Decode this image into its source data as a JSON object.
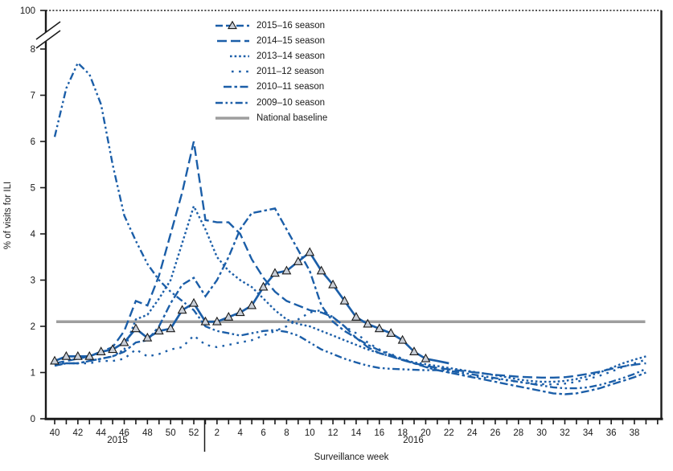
{
  "chart_data": {
    "type": "line",
    "title": "",
    "xlabel": "Surveillance week",
    "ylabel": "% of visits for ILI",
    "x_axis": {
      "weeks": [
        40,
        41,
        42,
        43,
        44,
        45,
        46,
        47,
        48,
        49,
        50,
        51,
        52,
        1,
        2,
        3,
        4,
        5,
        6,
        7,
        8,
        9,
        10,
        11,
        12,
        13,
        14,
        15,
        16,
        17,
        18,
        19,
        20,
        21,
        22,
        23,
        24,
        25,
        26,
        27,
        28,
        29,
        30,
        31,
        32,
        33,
        34,
        35,
        36,
        37,
        38,
        39
      ],
      "tick_label_every": 2,
      "year_labels": [
        "2015",
        "2016"
      ]
    },
    "y_axis": {
      "ticks": [
        0,
        1,
        2,
        3,
        4,
        5,
        6,
        7,
        8
      ],
      "break_label": "100",
      "has_axis_break": true
    },
    "baseline": {
      "name": "National baseline",
      "value": 2.1
    },
    "series": [
      {
        "name": "2015–16 season",
        "style": "solid-triangle",
        "marker": "triangle",
        "marker_last_index": 32,
        "values": [
          1.25,
          1.35,
          1.35,
          1.35,
          1.45,
          1.5,
          1.65,
          1.95,
          1.75,
          1.9,
          1.95,
          2.35,
          2.5,
          2.1,
          2.1,
          2.2,
          2.3,
          2.45,
          2.85,
          3.15,
          3.2,
          3.4,
          3.6,
          3.2,
          2.9,
          2.55,
          2.2,
          2.05,
          1.95,
          1.85,
          1.7,
          1.45,
          1.3,
          1.25,
          1.2,
          null,
          null,
          null,
          null,
          null,
          null,
          null,
          null,
          null,
          null,
          null,
          null,
          null,
          null,
          null,
          null,
          null
        ]
      },
      {
        "name": "2014–15 season",
        "style": "long-dash",
        "values": [
          1.2,
          1.25,
          1.3,
          1.35,
          1.45,
          1.55,
          1.9,
          2.55,
          2.45,
          3.1,
          4.0,
          4.9,
          6.0,
          4.3,
          4.25,
          4.25,
          4.0,
          3.45,
          3.05,
          2.75,
          2.55,
          2.45,
          2.35,
          2.3,
          2.2,
          2.0,
          1.75,
          1.55,
          1.42,
          1.35,
          1.27,
          1.2,
          1.15,
          1.1,
          1.07,
          1.04,
          1.01,
          0.98,
          0.95,
          0.93,
          0.91,
          0.9,
          0.89,
          0.89,
          0.9,
          0.93,
          0.97,
          1.02,
          1.08,
          1.13,
          1.17,
          1.2
        ]
      },
      {
        "name": "2013–14 season",
        "style": "dotted",
        "values": [
          1.15,
          1.2,
          1.2,
          1.25,
          1.3,
          1.35,
          1.5,
          2.15,
          2.25,
          2.6,
          3.0,
          3.8,
          4.6,
          4.1,
          3.5,
          3.2,
          3.0,
          2.85,
          2.6,
          2.35,
          2.15,
          2.05,
          2.0,
          1.9,
          1.8,
          1.7,
          1.6,
          1.5,
          1.42,
          1.35,
          1.28,
          1.22,
          1.18,
          1.14,
          1.1,
          1.06,
          1.02,
          0.98,
          0.94,
          0.9,
          0.85,
          0.82,
          0.8,
          0.8,
          0.82,
          0.86,
          0.92,
          1.0,
          1.1,
          1.2,
          1.28,
          1.35
        ]
      },
      {
        "name": "2011–12 season",
        "style": "sparse-dot",
        "values": [
          1.2,
          1.2,
          1.2,
          1.2,
          1.25,
          1.25,
          1.3,
          1.5,
          1.35,
          1.4,
          1.5,
          1.55,
          1.8,
          1.6,
          1.55,
          1.6,
          1.65,
          1.7,
          1.8,
          1.9,
          2.0,
          2.15,
          2.3,
          2.35,
          2.2,
          2.0,
          1.85,
          1.65,
          1.5,
          1.4,
          1.3,
          1.2,
          1.12,
          1.06,
          1.0,
          0.96,
          0.92,
          0.89,
          0.86,
          0.83,
          0.8,
          0.77,
          0.75,
          0.74,
          0.76,
          0.8,
          0.86,
          0.93,
          1.02,
          1.12,
          1.2,
          1.28
        ]
      },
      {
        "name": "2010–11 season",
        "style": "dash-dot",
        "values": [
          1.15,
          1.2,
          1.2,
          1.25,
          1.3,
          1.35,
          1.45,
          1.65,
          1.7,
          2.0,
          2.5,
          2.9,
          3.05,
          2.65,
          3.0,
          3.5,
          4.1,
          4.45,
          4.5,
          4.55,
          4.1,
          3.65,
          3.2,
          2.45,
          2.1,
          1.9,
          1.75,
          1.6,
          1.48,
          1.38,
          1.28,
          1.2,
          1.12,
          1.05,
          1.0,
          0.95,
          0.9,
          0.85,
          0.8,
          0.75,
          0.7,
          0.65,
          0.6,
          0.55,
          0.53,
          0.55,
          0.6,
          0.66,
          0.74,
          0.82,
          0.9,
          1.0
        ]
      },
      {
        "name": "2009–10 season",
        "style": "dash-dot-dot",
        "values": [
          6.1,
          7.15,
          7.7,
          7.45,
          6.8,
          5.5,
          4.4,
          3.85,
          3.35,
          3.0,
          2.75,
          2.55,
          2.35,
          2.0,
          1.9,
          1.85,
          1.8,
          1.85,
          1.9,
          1.92,
          1.88,
          1.8,
          1.65,
          1.5,
          1.4,
          1.3,
          1.22,
          1.15,
          1.1,
          1.08,
          1.07,
          1.06,
          1.05,
          1.05,
          1.04,
          1.0,
          0.96,
          0.92,
          0.88,
          0.84,
          0.8,
          0.76,
          0.72,
          0.68,
          0.66,
          0.66,
          0.68,
          0.73,
          0.8,
          0.88,
          0.97,
          1.08
        ]
      }
    ],
    "colors": {
      "series_blue": "#1B5EA8",
      "baseline_gray": "#9E9E9E",
      "marker_fill": "#C9CFD8",
      "axis": "#1A1A1A"
    },
    "legend_position": "top-left-inside"
  }
}
